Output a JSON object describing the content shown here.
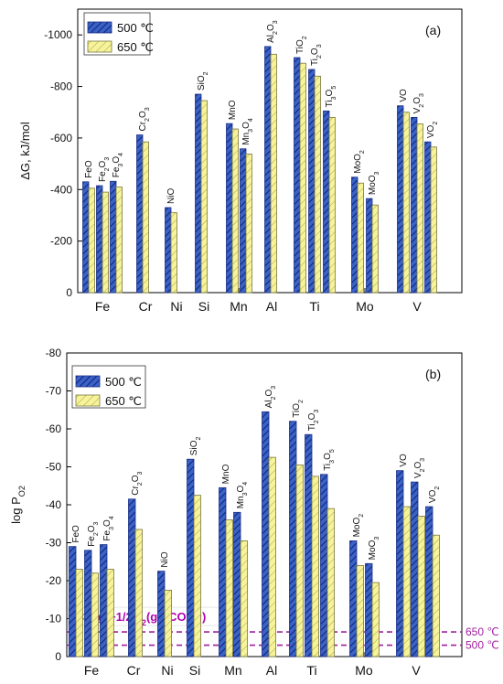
{
  "chart_data": [
    {
      "panel_label": "(a)",
      "type": "bar",
      "ylabel": "ΔG, kJ/mol",
      "ylim": [
        0,
        -1100
      ],
      "y_ticks": [
        0,
        -200,
        -400,
        -600,
        -800,
        -1000
      ],
      "y_axis_inverted": true,
      "legend_placement": "top-left",
      "series": [
        {
          "name": "500 ℃",
          "color": "#3a63c8",
          "pattern": "diagonal-dense"
        },
        {
          "name": "650 ℃",
          "color": "#f6f39a",
          "pattern": "diagonal-light"
        }
      ],
      "element_groups": [
        "Fe",
        "Cr",
        "Ni",
        "Si",
        "Mn",
        "Al",
        "Ti",
        "Mo",
        "V"
      ],
      "oxides": [
        {
          "group": "Fe",
          "label_parts": [
            [
              "FeO",
              ""
            ]
          ],
          "v500": -430,
          "v650": -405
        },
        {
          "group": "Fe",
          "label_parts": [
            [
              "Fe",
              ""
            ],
            [
              "2",
              "sub"
            ],
            [
              "O",
              ""
            ],
            [
              "3",
              "sub"
            ]
          ],
          "v500": -415,
          "v650": -390
        },
        {
          "group": "Fe",
          "label_parts": [
            [
              "Fe",
              ""
            ],
            [
              "3",
              "sub"
            ],
            [
              "O",
              ""
            ],
            [
              "4",
              "sub"
            ]
          ],
          "v500": -432,
          "v650": -410
        },
        {
          "group": "Cr",
          "label_parts": [
            [
              "Cr",
              ""
            ],
            [
              "2",
              "sub"
            ],
            [
              "O",
              ""
            ],
            [
              "3",
              "sub"
            ]
          ],
          "v500": -612,
          "v650": -585
        },
        {
          "group": "Ni",
          "label_parts": [
            [
              "NiO",
              ""
            ]
          ],
          "v500": -330,
          "v650": -310
        },
        {
          "group": "Si",
          "label_parts": [
            [
              "SiO",
              ""
            ],
            [
              "2",
              "sub"
            ]
          ],
          "v500": -770,
          "v650": -745
        },
        {
          "group": "Mn",
          "label_parts": [
            [
              "MnO",
              ""
            ]
          ],
          "v500": -656,
          "v650": -635
        },
        {
          "group": "Mn",
          "label_parts": [
            [
              "Mn",
              ""
            ],
            [
              "3",
              "sub"
            ],
            [
              "O",
              ""
            ],
            [
              "4",
              "sub"
            ]
          ],
          "v500": -558,
          "v650": -538
        },
        {
          "group": "Al",
          "label_parts": [
            [
              "Al",
              ""
            ],
            [
              "2",
              "sub"
            ],
            [
              "O",
              ""
            ],
            [
              "3",
              "sub"
            ]
          ],
          "v500": -955,
          "v650": -925
        },
        {
          "group": "Ti",
          "label_parts": [
            [
              "TiO",
              ""
            ],
            [
              "2",
              "sub"
            ]
          ],
          "v500": -912,
          "v650": -890
        },
        {
          "group": "Ti",
          "label_parts": [
            [
              "Ti",
              ""
            ],
            [
              "2",
              "sub"
            ],
            [
              "O",
              ""
            ],
            [
              "3",
              "sub"
            ]
          ],
          "v500": -866,
          "v650": -840
        },
        {
          "group": "Ti",
          "label_parts": [
            [
              "Ti",
              ""
            ],
            [
              "3",
              "sub"
            ],
            [
              "O",
              ""
            ],
            [
              "5",
              "sub"
            ]
          ],
          "v500": -705,
          "v650": -680
        },
        {
          "group": "Mo",
          "label_parts": [
            [
              "MoO",
              ""
            ],
            [
              "2",
              "sub"
            ]
          ],
          "v500": -448,
          "v650": -425
        },
        {
          "group": "Mo",
          "label_parts": [
            [
              "MoO",
              ""
            ],
            [
              "3",
              "sub"
            ]
          ],
          "v500": -365,
          "v650": -340
        },
        {
          "group": "V",
          "label_parts": [
            [
              "VO",
              ""
            ]
          ],
          "v500": -725,
          "v650": -700
        },
        {
          "group": "V",
          "label_parts": [
            [
              "V",
              ""
            ],
            [
              "2",
              "sub"
            ],
            [
              "O",
              ""
            ],
            [
              "3",
              "sub"
            ]
          ],
          "v500": -680,
          "v650": -655
        },
        {
          "group": "V",
          "label_parts": [
            [
              "VO",
              ""
            ],
            [
              "2",
              "sub"
            ]
          ],
          "v500": -585,
          "v650": -565
        }
      ]
    },
    {
      "panel_label": "(b)",
      "type": "bar",
      "ylabel": "log P",
      "ylabel_subscript": "O2",
      "ylim": [
        0,
        -80
      ],
      "y_ticks": [
        0,
        -10,
        -20,
        -30,
        -40,
        -50,
        -60,
        -70,
        -80
      ],
      "y_axis_inverted": true,
      "legend_placement": "top-left",
      "series": [
        {
          "name": "500 ℃",
          "color": "#3a63c8",
          "pattern": "diagonal-dense"
        },
        {
          "name": "650 ℃",
          "color": "#f6f39a",
          "pattern": "diagonal-light"
        }
      ],
      "element_groups": [
        "Fe",
        "Cr",
        "Ni",
        "Si",
        "Mn",
        "Al",
        "Ti",
        "Mo",
        "V"
      ],
      "oxides": [
        {
          "group": "Fe",
          "label_parts": [
            [
              "FeO",
              ""
            ]
          ],
          "v500": -29,
          "v650": -23
        },
        {
          "group": "Fe",
          "label_parts": [
            [
              "Fe",
              ""
            ],
            [
              "2",
              "sub"
            ],
            [
              "O",
              ""
            ],
            [
              "3",
              "sub"
            ]
          ],
          "v500": -28,
          "v650": -22
        },
        {
          "group": "Fe",
          "label_parts": [
            [
              "Fe",
              ""
            ],
            [
              "3",
              "sub"
            ],
            [
              "O",
              ""
            ],
            [
              "4",
              "sub"
            ]
          ],
          "v500": -29.5,
          "v650": -23
        },
        {
          "group": "Cr",
          "label_parts": [
            [
              "Cr",
              ""
            ],
            [
              "2",
              "sub"
            ],
            [
              "O",
              ""
            ],
            [
              "3",
              "sub"
            ]
          ],
          "v500": -41.5,
          "v650": -33.5
        },
        {
          "group": "Ni",
          "label_parts": [
            [
              "NiO",
              ""
            ]
          ],
          "v500": -22.5,
          "v650": -17.5
        },
        {
          "group": "Si",
          "label_parts": [
            [
              "SiO",
              ""
            ],
            [
              "2",
              "sub"
            ]
          ],
          "v500": -52,
          "v650": -42.5
        },
        {
          "group": "Mn",
          "label_parts": [
            [
              "MnO",
              ""
            ]
          ],
          "v500": -44.5,
          "v650": -36
        },
        {
          "group": "Mn",
          "label_parts": [
            [
              "Mn",
              ""
            ],
            [
              "3",
              "sub"
            ],
            [
              "O",
              ""
            ],
            [
              "4",
              "sub"
            ]
          ],
          "v500": -38,
          "v650": -30.5
        },
        {
          "group": "Al",
          "label_parts": [
            [
              "Al",
              ""
            ],
            [
              "2",
              "sub"
            ],
            [
              "O",
              ""
            ],
            [
              "3",
              "sub"
            ]
          ],
          "v500": -64.5,
          "v650": -52.5
        },
        {
          "group": "Ti",
          "label_parts": [
            [
              "TiO",
              ""
            ],
            [
              "2",
              "sub"
            ]
          ],
          "v500": -62,
          "v650": -50.5
        },
        {
          "group": "Ti",
          "label_parts": [
            [
              "Ti",
              ""
            ],
            [
              "2",
              "sub"
            ],
            [
              "O",
              ""
            ],
            [
              "3",
              "sub"
            ]
          ],
          "v500": -58.5,
          "v650": -47.5
        },
        {
          "group": "Ti",
          "label_parts": [
            [
              "Ti",
              ""
            ],
            [
              "3",
              "sub"
            ],
            [
              "O",
              ""
            ],
            [
              "5",
              "sub"
            ]
          ],
          "v500": -48,
          "v650": -39
        },
        {
          "group": "Mo",
          "label_parts": [
            [
              "MoO",
              ""
            ],
            [
              "2",
              "sub"
            ]
          ],
          "v500": -30.5,
          "v650": -24
        },
        {
          "group": "Mo",
          "label_parts": [
            [
              "MoO",
              ""
            ],
            [
              "3",
              "sub"
            ]
          ],
          "v500": -24.5,
          "v650": -19.5
        },
        {
          "group": "V",
          "label_parts": [
            [
              "VO",
              ""
            ]
          ],
          "v500": -49,
          "v650": -39.5
        },
        {
          "group": "V",
          "label_parts": [
            [
              "V",
              ""
            ],
            [
              "2",
              "sub"
            ],
            [
              "O",
              ""
            ],
            [
              "3",
              "sub"
            ]
          ],
          "v500": -46,
          "v650": -37
        },
        {
          "group": "V",
          "label_parts": [
            [
              "VO",
              ""
            ],
            [
              "2",
              "sub"
            ]
          ],
          "v500": -39.5,
          "v650": -32
        }
      ],
      "reference_lines": [
        {
          "label": "650 ℃",
          "value": -6.5,
          "color": "#a020a0"
        },
        {
          "label": "500 ℃",
          "value": -3,
          "color": "#a020a0"
        }
      ],
      "reaction_box": {
        "label_parts": [
          [
            "CO(g)+1/2O",
            ""
          ],
          [
            "2",
            "sub"
          ],
          [
            "(g)=CO",
            ""
          ],
          [
            "2",
            "sub"
          ],
          [
            "(g)",
            ""
          ]
        ],
        "color": "#b000b0"
      }
    }
  ]
}
